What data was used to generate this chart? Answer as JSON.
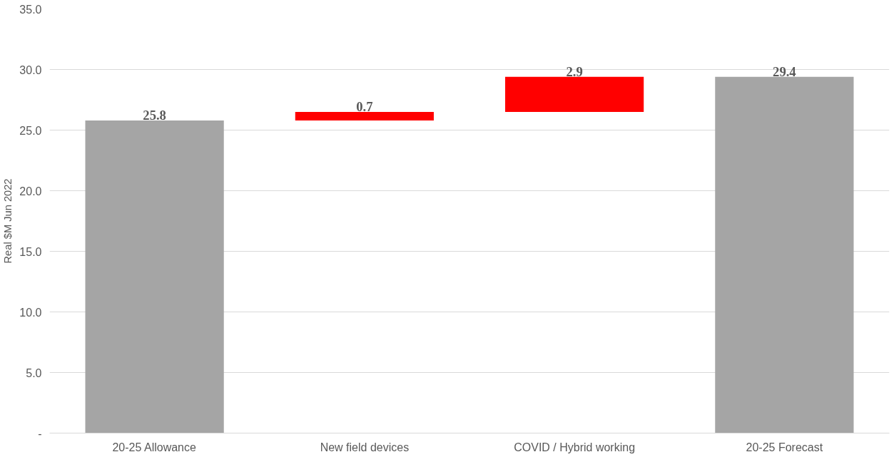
{
  "chart_data": {
    "type": "bar",
    "ylabel": "Real $M Jun 2022",
    "categories": [
      "20-25 Allowance",
      "New field devices",
      "COVID / Hybrid working",
      "20-25 Forecast"
    ],
    "values": [
      25.8,
      0.7,
      2.9,
      29.4
    ],
    "base": [
      0,
      25.8,
      26.5,
      0
    ],
    "colors": [
      "#a5a5a5",
      "#ff0000",
      "#ff0000",
      "#a5a5a5"
    ],
    "ylim": [
      0,
      35
    ],
    "yticks": [
      {
        "value": 0,
        "label": "-"
      },
      {
        "value": 5,
        "label": "5.0"
      },
      {
        "value": 10,
        "label": "10.0"
      },
      {
        "value": 15,
        "label": "15.0"
      },
      {
        "value": 20,
        "label": "20.0"
      },
      {
        "value": 25,
        "label": "25.0"
      },
      {
        "value": 30,
        "label": "30.0"
      },
      {
        "value": 35,
        "label": "35.0"
      }
    ],
    "grid": "y",
    "data_labels": true
  }
}
